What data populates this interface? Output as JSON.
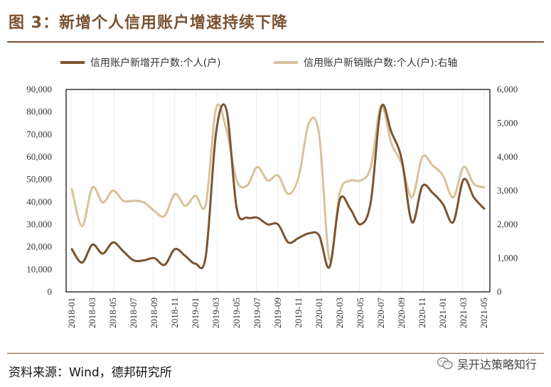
{
  "title": "图 3：新增个人信用账户增速持续下降",
  "source": "资料来源：Wind，德邦研究所",
  "watermark": "吴开达策略知行",
  "colors": {
    "new_accounts": "#7b5430",
    "closed_accounts": "#d8c29c",
    "brand": "#7a5230",
    "hatch": "#e4e4e4"
  },
  "chart_data": {
    "type": "line",
    "title": "图 3：新增个人信用账户增速持续下降",
    "x": [
      "2018-01",
      "2018-02",
      "2018-03",
      "2018-04",
      "2018-05",
      "2018-06",
      "2018-07",
      "2018-08",
      "2018-09",
      "2018-10",
      "2018-11",
      "2018-12",
      "2019-01",
      "2019-02",
      "2019-03",
      "2019-04",
      "2019-05",
      "2019-06",
      "2019-07",
      "2019-08",
      "2019-09",
      "2019-10",
      "2019-11",
      "2019-12",
      "2020-01",
      "2020-02",
      "2020-03",
      "2020-04",
      "2020-05",
      "2020-06",
      "2020-07",
      "2020-08",
      "2020-09",
      "2020-10",
      "2020-11",
      "2020-12",
      "2021-01",
      "2021-02",
      "2021-03",
      "2021-04",
      "2021-05"
    ],
    "x_tick_labels": [
      "2018-01",
      "2018-03",
      "2018-05",
      "2018-07",
      "2018-09",
      "2018-11",
      "2019-01",
      "2019-03",
      "2019-05",
      "2019-07",
      "2019-09",
      "2019-11",
      "2020-01",
      "2020-03",
      "2020-05",
      "2020-07",
      "2020-09",
      "2020-11",
      "2021-01",
      "2021-03",
      "2021-05"
    ],
    "series": [
      {
        "name": "信用账户新增开户数:个人(户)",
        "axis": "left",
        "values": [
          19000,
          13000,
          21000,
          17000,
          22000,
          18000,
          14000,
          14000,
          15000,
          12000,
          19000,
          16000,
          12500,
          16000,
          71000,
          81000,
          37000,
          33000,
          33000,
          30000,
          30000,
          22000,
          24000,
          26000,
          25000,
          11000,
          41000,
          37000,
          30000,
          40000,
          82000,
          71000,
          59000,
          31000,
          47000,
          44000,
          39000,
          31000,
          50000,
          42000,
          37000
        ]
      },
      {
        "name": "信用账户新销账户数:个人(户):右轴",
        "axis": "right",
        "values": [
          3050,
          1950,
          3100,
          2650,
          3000,
          2700,
          2700,
          2650,
          2400,
          2250,
          2900,
          2550,
          2850,
          2600,
          5450,
          4800,
          3300,
          3150,
          3700,
          3300,
          3450,
          2900,
          3400,
          5000,
          4650,
          950,
          2950,
          3300,
          3300,
          3700,
          5500,
          4400,
          3800,
          2800,
          4000,
          3750,
          3450,
          2800,
          3700,
          3200,
          3100
        ]
      }
    ],
    "ylabel_left": "",
    "ylabel_right": "",
    "ylim_left": [
      0,
      90000
    ],
    "yticks_left": [
      "0",
      "10,000",
      "20,000",
      "30,000",
      "40,000",
      "50,000",
      "60,000",
      "70,000",
      "80,000",
      "90,000"
    ],
    "ylim_right": [
      0,
      6000
    ],
    "yticks_right": [
      "0",
      "1,000",
      "2,000",
      "3,000",
      "4,000",
      "5,000",
      "6,000"
    ],
    "legend": "top"
  }
}
